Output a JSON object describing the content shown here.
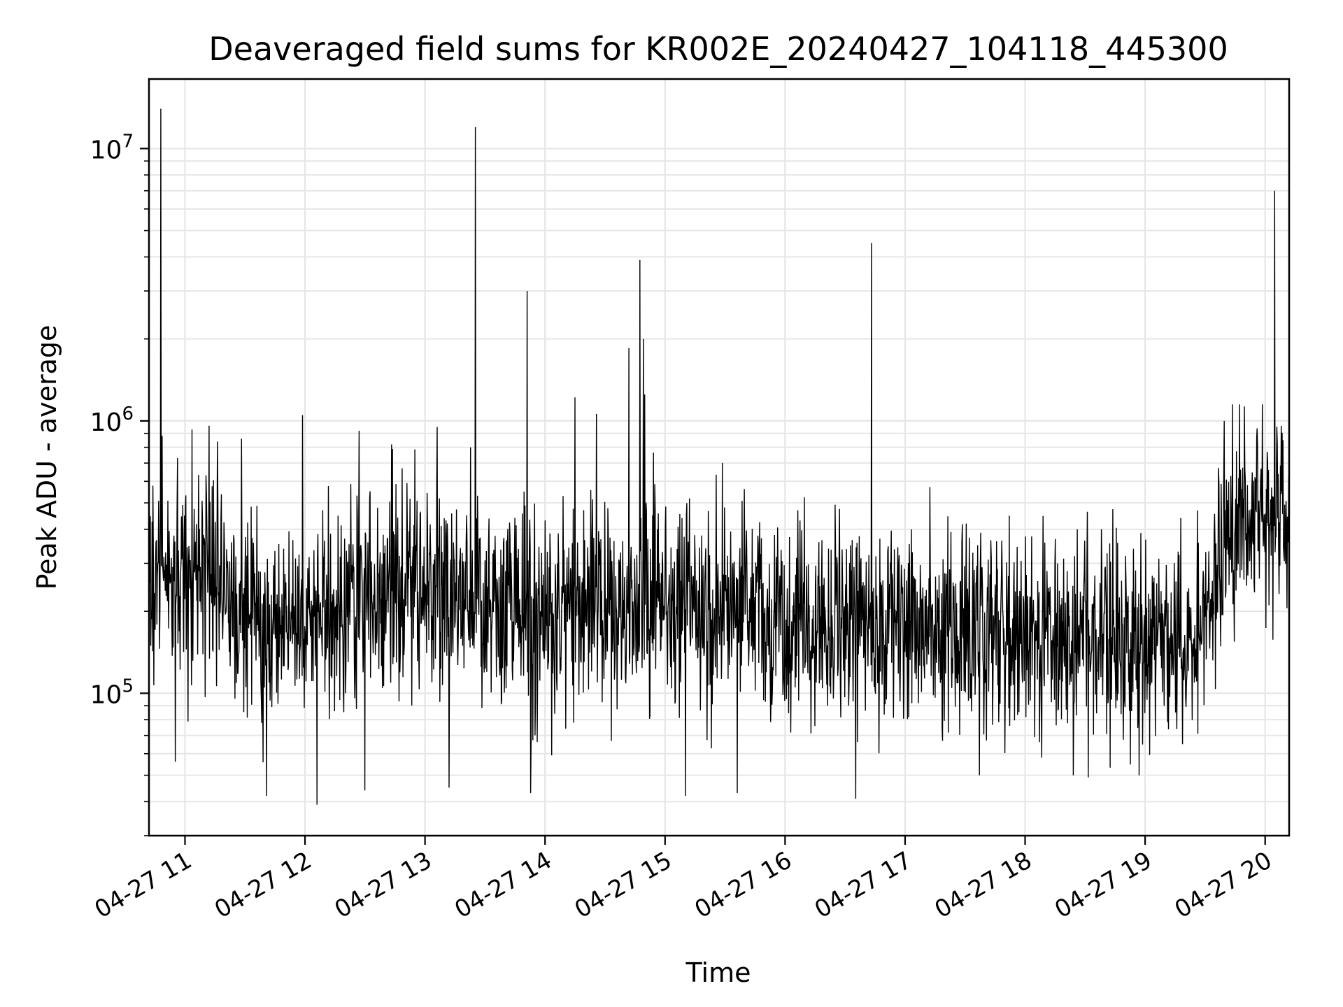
{
  "chart_data": {
    "type": "line",
    "title": "Deaveraged field sums for KR002E_20240427_104118_445300",
    "xlabel": "Time",
    "ylabel": "Peak ADU - average",
    "yscale": "log",
    "ylim": [
      30000,
      18000000
    ],
    "xlim_hours": [
      10.7,
      20.2
    ],
    "grid": true,
    "line_color": "#000000",
    "x_ticks": [
      {
        "hour": 11,
        "label": "04-27 11"
      },
      {
        "hour": 12,
        "label": "04-27 12"
      },
      {
        "hour": 13,
        "label": "04-27 13"
      },
      {
        "hour": 14,
        "label": "04-27 14"
      },
      {
        "hour": 15,
        "label": "04-27 15"
      },
      {
        "hour": 16,
        "label": "04-27 16"
      },
      {
        "hour": 17,
        "label": "04-27 17"
      },
      {
        "hour": 18,
        "label": "04-27 18"
      },
      {
        "hour": 19,
        "label": "04-27 19"
      },
      {
        "hour": 20,
        "label": "04-27 20"
      }
    ],
    "y_ticks": [
      {
        "value": 100000,
        "base": "10",
        "exp": "5"
      },
      {
        "value": 1000000,
        "base": "10",
        "exp": "6"
      },
      {
        "value": 10000000,
        "base": "10",
        "exp": "7"
      }
    ],
    "baseline": [
      {
        "hour": 10.7,
        "value": 300000
      },
      {
        "hour": 11.3,
        "value": 250000
      },
      {
        "hour": 11.7,
        "value": 160000
      },
      {
        "hour": 12.2,
        "value": 200000
      },
      {
        "hour": 13.0,
        "value": 240000
      },
      {
        "hour": 14.0,
        "value": 210000
      },
      {
        "hour": 15.0,
        "value": 220000
      },
      {
        "hour": 16.0,
        "value": 200000
      },
      {
        "hour": 17.0,
        "value": 170000
      },
      {
        "hour": 18.0,
        "value": 170000
      },
      {
        "hour": 18.8,
        "value": 150000
      },
      {
        "hour": 19.4,
        "value": 170000
      },
      {
        "hour": 19.6,
        "value": 230000
      },
      {
        "hour": 19.7,
        "value": 400000
      },
      {
        "hour": 20.2,
        "value": 440000
      }
    ],
    "spikes": [
      {
        "hour": 10.8,
        "value": 14000000
      },
      {
        "hour": 10.81,
        "value": 880000
      },
      {
        "hour": 11.06,
        "value": 930000
      },
      {
        "hour": 11.2,
        "value": 960000
      },
      {
        "hour": 11.27,
        "value": 840000
      },
      {
        "hour": 11.47,
        "value": 860000
      },
      {
        "hour": 11.98,
        "value": 1050000
      },
      {
        "hour": 12.45,
        "value": 920000
      },
      {
        "hour": 12.72,
        "value": 820000
      },
      {
        "hour": 13.1,
        "value": 950000
      },
      {
        "hour": 13.38,
        "value": 800000
      },
      {
        "hour": 13.42,
        "value": 12000000
      },
      {
        "hour": 13.85,
        "value": 3000000
      },
      {
        "hour": 14.25,
        "value": 1220000
      },
      {
        "hour": 14.43,
        "value": 1060000
      },
      {
        "hour": 14.7,
        "value": 1850000
      },
      {
        "hour": 14.79,
        "value": 3900000
      },
      {
        "hour": 14.82,
        "value": 2000000
      },
      {
        "hour": 14.83,
        "value": 1250000
      },
      {
        "hour": 16.72,
        "value": 4500000
      },
      {
        "hour": 19.66,
        "value": 1000000
      },
      {
        "hour": 20.08,
        "value": 7000000
      },
      {
        "hour": 20.15,
        "value": 850000
      }
    ],
    "dips": [
      {
        "hour": 10.74,
        "value": 107000
      },
      {
        "hour": 10.92,
        "value": 56000
      },
      {
        "hour": 11.68,
        "value": 42000
      },
      {
        "hour": 12.1,
        "value": 39000
      },
      {
        "hour": 12.5,
        "value": 44000
      },
      {
        "hour": 13.2,
        "value": 45000
      },
      {
        "hour": 13.88,
        "value": 43000
      },
      {
        "hour": 15.17,
        "value": 42000
      },
      {
        "hour": 15.6,
        "value": 43000
      },
      {
        "hour": 16.59,
        "value": 41000
      },
      {
        "hour": 17.62,
        "value": 50000
      },
      {
        "hour": 18.4,
        "value": 50000
      },
      {
        "hour": 18.95,
        "value": 50000
      }
    ]
  }
}
